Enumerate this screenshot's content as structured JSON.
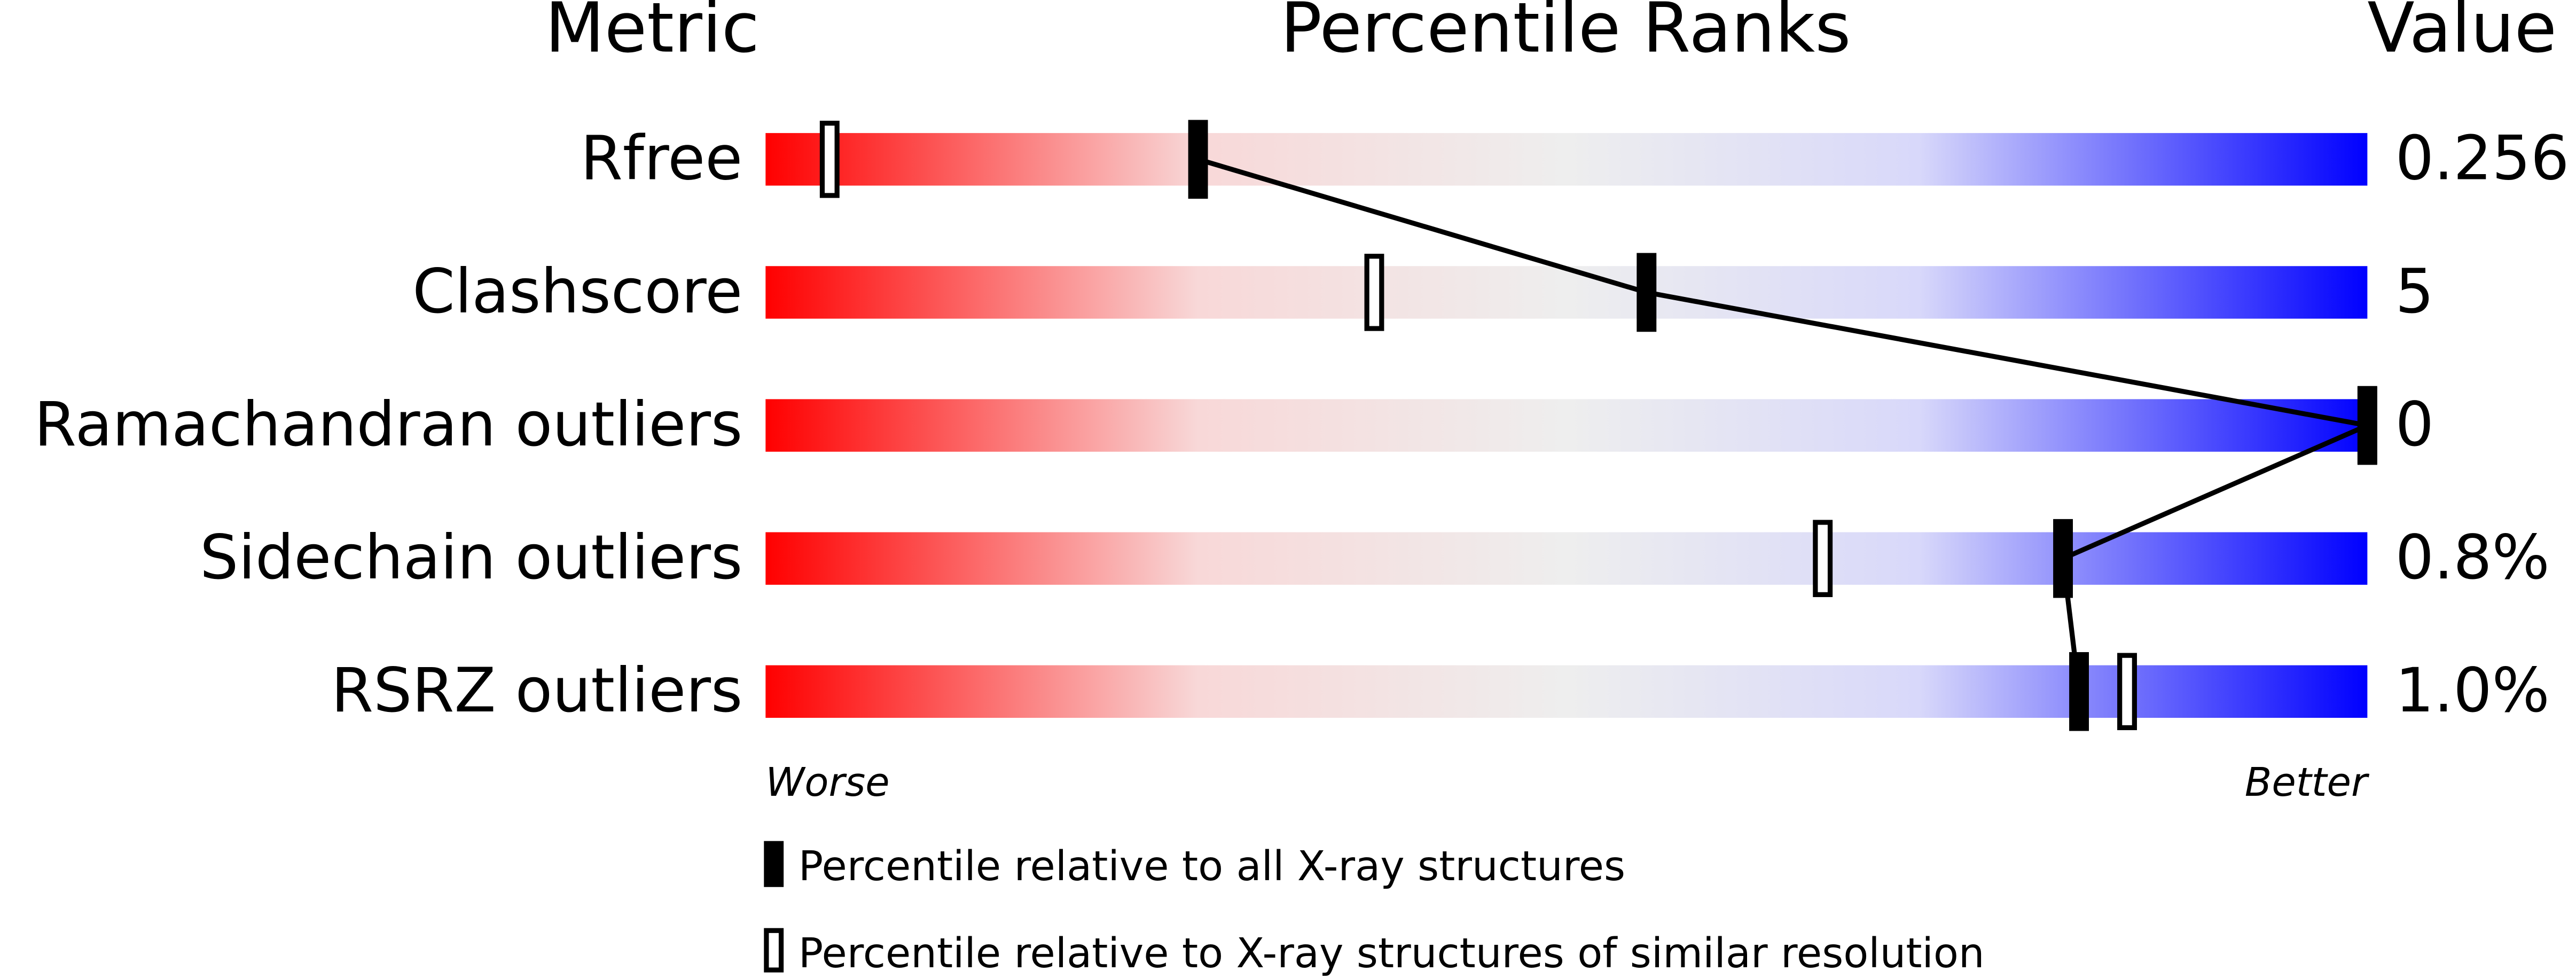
{
  "chart_data": {
    "type": "percentile",
    "headers": [
      "Metric",
      "Percentile Ranks",
      "Value"
    ],
    "xlim": [
      0,
      100
    ],
    "rows": [
      {
        "metric": "Rfree",
        "value": "0.256",
        "all": 27,
        "similar": 4
      },
      {
        "metric": "Clashscore",
        "value": "5",
        "all": 55,
        "similar": 38
      },
      {
        "metric": "Ramachandran outliers",
        "value": "0",
        "all": 100,
        "similar": 100
      },
      {
        "metric": "Sidechain outliers",
        "value": "0.8%",
        "all": 81,
        "similar": 66
      },
      {
        "metric": "RSRZ outliers",
        "value": "1.0%",
        "all": 82,
        "similar": 85
      }
    ],
    "axis_labels": [
      "Worse",
      "Better"
    ],
    "legend": [
      "Percentile relative to all X-ray structures",
      "Percentile relative to X-ray structures of similar resolution"
    ]
  }
}
